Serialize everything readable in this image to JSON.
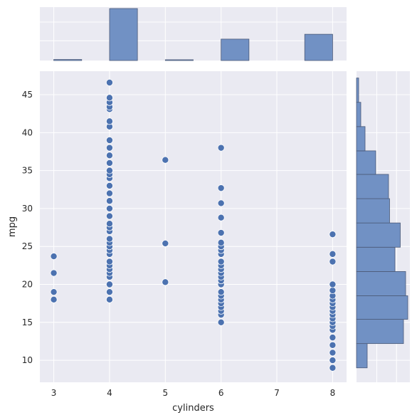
{
  "chart_data": {
    "type": "scatter",
    "style": "seaborn jointplot (scatter + marginal histograms)",
    "xlabel": "cylinders",
    "ylabel": "mpg",
    "xlim": [
      2.75,
      8.25
    ],
    "ylim": [
      7.1,
      48.1
    ],
    "xticks": [
      "3",
      "4",
      "5",
      "6",
      "7",
      "8"
    ],
    "yticks": [
      "10",
      "15",
      "20",
      "25",
      "30",
      "35",
      "40",
      "45"
    ],
    "background": "#eaeaf2",
    "grid": true,
    "point_color": "#4c72b0",
    "bar_fill": "#7191c4",
    "bar_edge": "#4c5a78",
    "series": [
      {
        "x": 3,
        "mpg": [
          18.0,
          19.0,
          21.5,
          23.7
        ]
      },
      {
        "x": 4,
        "mpg": [
          18.0,
          19.0,
          20.0,
          21.0,
          21.5,
          22.0,
          22.5,
          23.0,
          24.0,
          24.5,
          25.0,
          25.5,
          26.0,
          27.0,
          27.5,
          28.0,
          29.0,
          30.0,
          31.0,
          32.0,
          33.0,
          34.0,
          34.5,
          35.0,
          36.0,
          37.0,
          38.0,
          39.0,
          40.8,
          41.5,
          43.1,
          43.4,
          44.0,
          44.6,
          46.6
        ]
      },
      {
        "x": 5,
        "mpg": [
          20.3,
          25.4,
          36.4
        ]
      },
      {
        "x": 6,
        "mpg": [
          15.0,
          16.0,
          16.5,
          17.0,
          17.5,
          18.0,
          18.5,
          19.0,
          20.0,
          20.5,
          21.0,
          21.5,
          22.0,
          22.5,
          23.0,
          24.0,
          24.5,
          25.0,
          25.5,
          26.8,
          28.8,
          30.7,
          32.7,
          38.0
        ]
      },
      {
        "x": 8,
        "mpg": [
          9.0,
          10.0,
          11.0,
          12.0,
          13.0,
          14.0,
          14.5,
          15.0,
          15.5,
          16.0,
          16.5,
          17.0,
          17.5,
          18.0,
          18.5,
          19.2,
          20.0,
          23.0,
          24.0,
          26.6
        ]
      }
    ],
    "x_marginal": [
      {
        "bin": [
          3.0,
          3.5
        ],
        "count": 4
      },
      {
        "bin": [
          4.0,
          4.5
        ],
        "count": 204
      },
      {
        "bin": [
          5.0,
          5.5
        ],
        "count": 3
      },
      {
        "bin": [
          6.0,
          6.5
        ],
        "count": 84
      },
      {
        "bin": [
          7.5,
          8.0
        ],
        "count": 103
      }
    ],
    "y_marginal": [
      {
        "bin": [
          9.0,
          12.2
        ],
        "count": 10
      },
      {
        "bin": [
          12.2,
          15.4
        ],
        "count": 44
      },
      {
        "bin": [
          15.4,
          18.5
        ],
        "count": 48
      },
      {
        "bin": [
          18.5,
          21.7
        ],
        "count": 46
      },
      {
        "bin": [
          21.7,
          24.9
        ],
        "count": 36
      },
      {
        "bin": [
          24.9,
          28.1
        ],
        "count": 41
      },
      {
        "bin": [
          28.1,
          31.3
        ],
        "count": 31
      },
      {
        "bin": [
          31.3,
          34.5
        ],
        "count": 30
      },
      {
        "bin": [
          34.5,
          37.6
        ],
        "count": 18
      },
      {
        "bin": [
          37.6,
          40.8
        ],
        "count": 8
      },
      {
        "bin": [
          40.8,
          44.0
        ],
        "count": 4
      },
      {
        "bin": [
          44.0,
          47.2
        ],
        "count": 2
      }
    ]
  }
}
